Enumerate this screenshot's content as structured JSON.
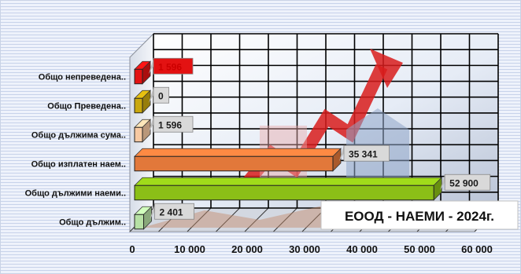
{
  "chart_data": {
    "type": "bar",
    "orientation": "horizontal",
    "title": "ЕООД - НАЕМИ - 2024г.",
    "xlabel": "",
    "ylabel": "",
    "xlim": [
      0,
      60000
    ],
    "grid": true,
    "legend": "none",
    "ticks": [
      "0",
      "10 000",
      "20 000",
      "30 000",
      "40 000",
      "50 000",
      "60 000"
    ],
    "categories": [
      "Общо дължим..",
      "Общо дължими наеми..",
      "Общо изплатен наем..",
      "Общо дължима сума..",
      "Общо Преведена..",
      "Общо непреведена.."
    ],
    "values": [
      2401,
      52900,
      35341,
      1596,
      0,
      1596
    ],
    "labels": [
      "2 401",
      "52 900",
      "35 341",
      "1 596",
      "0",
      "1 596"
    ],
    "colors": [
      "#b6e0a4",
      "#8bbf17",
      "#e2783a",
      "#f7c9a2",
      "#c9a80e",
      "#e31212"
    ]
  }
}
